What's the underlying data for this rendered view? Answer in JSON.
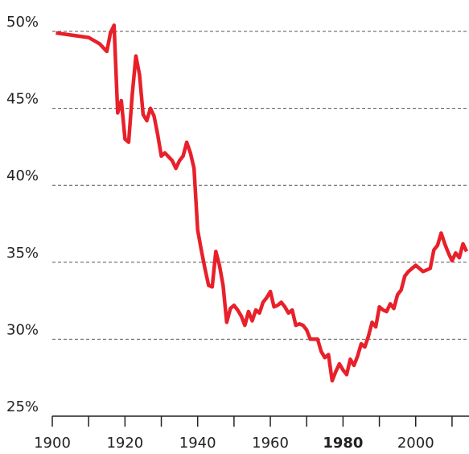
{
  "chart_data": {
    "type": "line",
    "color": "#e8202a",
    "x": [
      1901,
      1910,
      1913,
      1915,
      1916,
      1917,
      1918,
      1919,
      1920,
      1921,
      1922,
      1923,
      1924,
      1925,
      1926,
      1927,
      1928,
      1929,
      1930,
      1931,
      1933,
      1934,
      1935,
      1936,
      1937,
      1938,
      1939,
      1940,
      1941,
      1942,
      1943,
      1944,
      1945,
      1946,
      1947,
      1948,
      1949,
      1950,
      1951,
      1952,
      1953,
      1954,
      1955,
      1956,
      1957,
      1958,
      1959,
      1960,
      1961,
      1962,
      1963,
      1964,
      1965,
      1966,
      1967,
      1968,
      1969,
      1970,
      1971,
      1972,
      1973,
      1974,
      1975,
      1976,
      1977,
      1978,
      1979,
      1980,
      1981,
      1982,
      1983,
      1984,
      1985,
      1986,
      1987,
      1988,
      1989,
      1990,
      1991,
      1992,
      1993,
      1994,
      1995,
      1996,
      1997,
      1998,
      1999,
      2000,
      2001,
      2002,
      2003,
      2004,
      2005,
      2006,
      2007,
      2008,
      2009,
      2010,
      2011,
      2012,
      2013,
      2014
    ],
    "values": [
      49.9,
      49.6,
      49.2,
      48.7,
      49.9,
      50.4,
      44.7,
      45.5,
      43.0,
      42.8,
      45.9,
      48.4,
      47.2,
      44.6,
      44.2,
      45.0,
      44.5,
      43.3,
      41.9,
      42.1,
      41.6,
      41.1,
      41.6,
      41.9,
      42.8,
      42.1,
      41.1,
      37.1,
      35.8,
      34.6,
      33.5,
      33.4,
      35.7,
      34.8,
      33.5,
      31.1,
      32.0,
      32.2,
      31.9,
      31.5,
      30.9,
      31.8,
      31.2,
      31.9,
      31.7,
      32.4,
      32.7,
      33.1,
      32.1,
      32.2,
      32.4,
      32.1,
      31.7,
      31.9,
      30.9,
      31.0,
      30.9,
      30.6,
      30.0,
      30.0,
      30.0,
      29.2,
      28.8,
      29.0,
      27.3,
      27.9,
      28.4,
      28.0,
      27.7,
      28.7,
      28.3,
      28.9,
      29.7,
      29.5,
      30.2,
      31.1,
      30.8,
      32.1,
      31.9,
      31.8,
      32.3,
      32.0,
      32.9,
      33.2,
      34.1,
      34.4,
      34.6,
      34.8,
      34.6,
      34.4,
      34.5,
      34.6,
      35.8,
      36.1,
      36.9,
      36.2,
      35.6,
      35.1,
      35.6,
      35.3,
      36.2,
      35.7
    ],
    "xlim": [
      1900,
      2014
    ],
    "xticks": [
      1900,
      1920,
      1940,
      1960,
      1980,
      2000
    ],
    "xminorticks": [
      1910,
      1930,
      1950,
      1970,
      1990,
      2010
    ],
    "bold_xticks": [
      1980
    ],
    "ylim": [
      25,
      50
    ],
    "yticks": [
      {
        "value": 25,
        "label": "25%"
      },
      {
        "value": 30,
        "label": "30%"
      },
      {
        "value": 35,
        "label": "35%"
      },
      {
        "value": 40,
        "label": "40%"
      },
      {
        "value": 45,
        "label": "45%"
      },
      {
        "value": 50,
        "label": "50%"
      }
    ],
    "grid": true
  }
}
